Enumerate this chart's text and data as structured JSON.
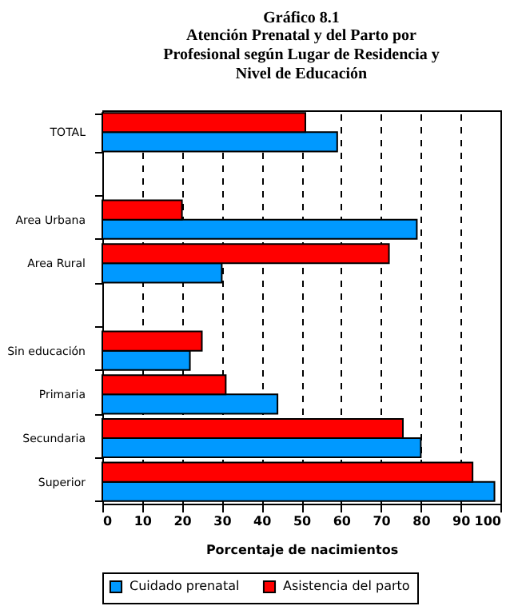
{
  "chart_data": {
    "type": "bar",
    "orientation": "horizontal",
    "title": "Gráfico 8.1",
    "subtitle": "Atención Prenatal y del Parto por Profesional según Lugar de Residencia y Nivel de Educación",
    "categories": [
      "TOTAL",
      null,
      "Area Urbana",
      "Area Rural",
      null,
      "Sin educación",
      "Primaria",
      "Secundaria",
      "Superior"
    ],
    "series": [
      {
        "name": "Cuidado prenatal",
        "color": "#0099ff",
        "values": [
          59,
          null,
          79,
          30,
          null,
          22,
          44,
          80,
          98.5
        ]
      },
      {
        "name": "Asistencia del parto",
        "color": "#ff0000",
        "values": [
          51,
          null,
          20,
          72,
          null,
          25,
          31,
          75.5,
          93
        ]
      }
    ],
    "xlabel": "Porcentaje de nacimientos",
    "xlim": [
      0,
      100
    ],
    "xticks": [
      0,
      10,
      20,
      30,
      40,
      50,
      60,
      70,
      80,
      90,
      100
    ],
    "grid": "x",
    "legend": "bottom"
  }
}
